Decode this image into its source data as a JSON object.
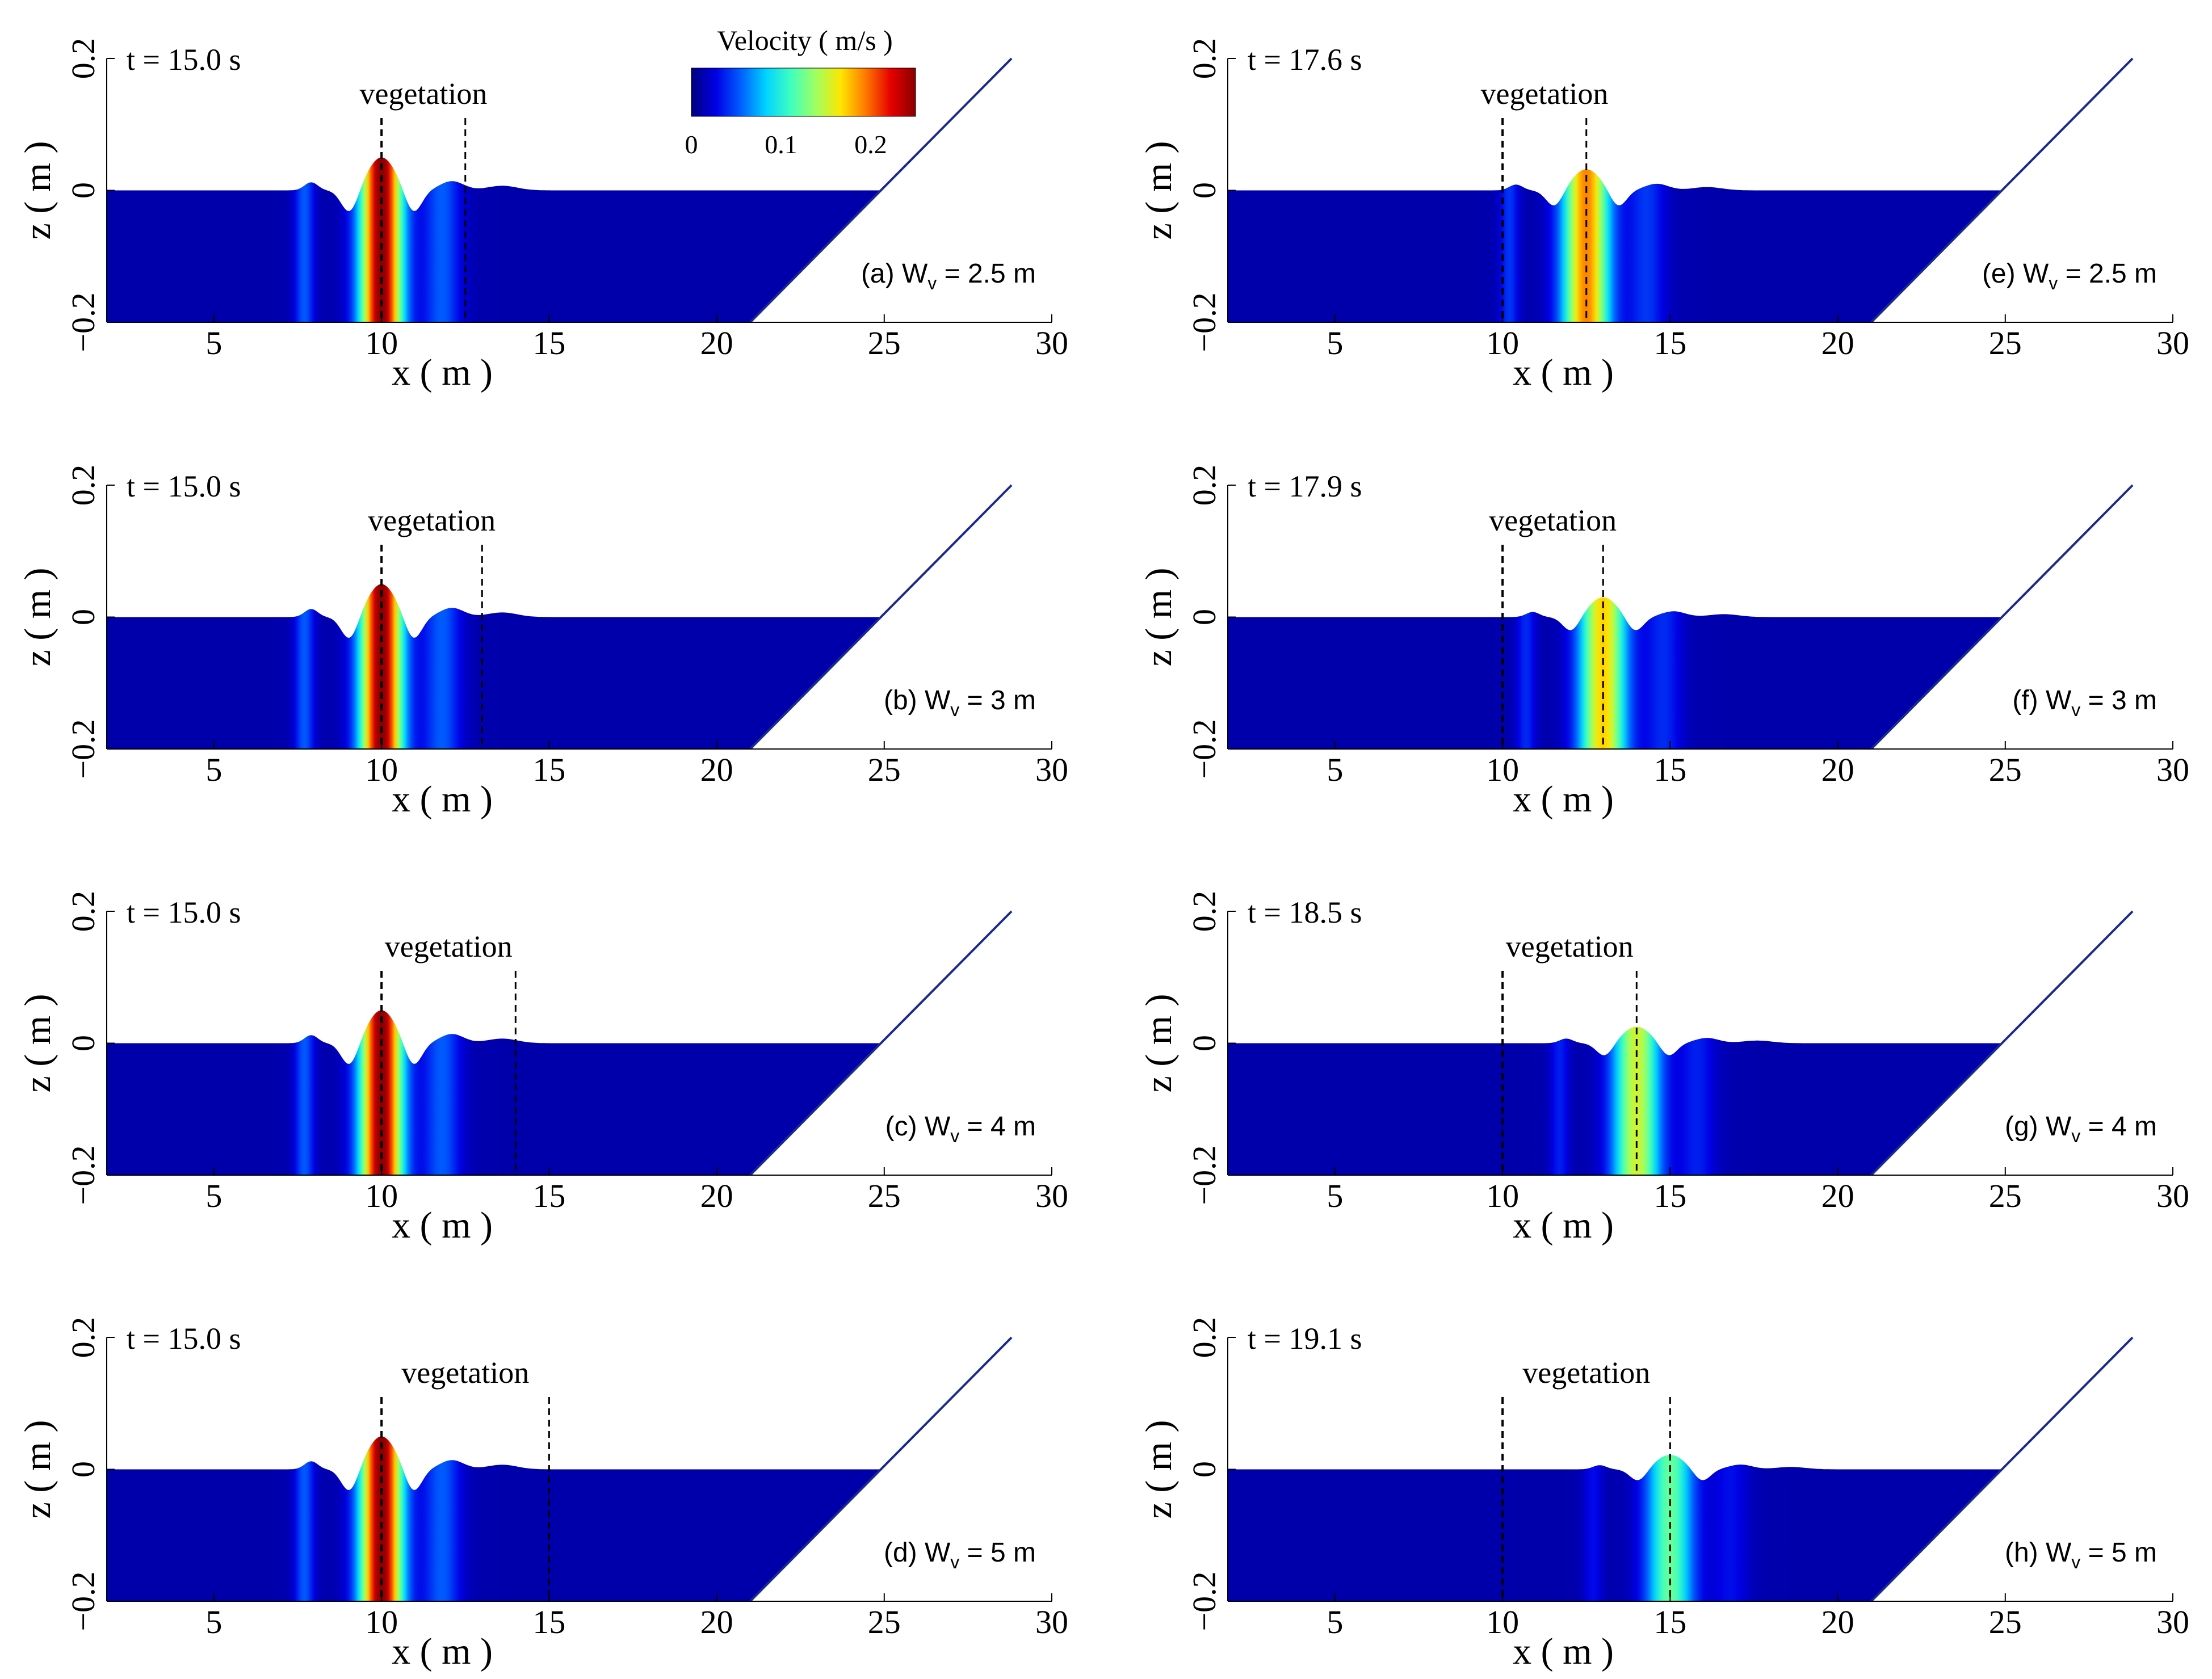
{
  "colorbar": {
    "title": "Velocity ( m/s )",
    "ticks": [
      0,
      0.1,
      0.2
    ],
    "tick_labels": [
      "0",
      "0.1",
      "0.2"
    ],
    "range": [
      0,
      0.25
    ],
    "colors": [
      "#00007f",
      "#0000e6",
      "#0060ff",
      "#00d4ff",
      "#40ffbf",
      "#a0ff60",
      "#ffe600",
      "#ff7800",
      "#e60000",
      "#8a0000"
    ]
  },
  "chart_data": [
    {
      "panel": "a",
      "type": "heatmap",
      "time_label": "t = 15.0 s",
      "label": "(a) W",
      "label_sub": "v",
      "label_tail": " = 2.5 m",
      "veg_label": "vegetation",
      "veg_start": 10,
      "veg_end": 12.5,
      "xlabel": "x ( m )",
      "ylabel": "z ( m )",
      "xlim": [
        1.8,
        30
      ],
      "ylim": [
        -0.2,
        0.2
      ],
      "xticks": [
        5,
        10,
        15,
        20,
        25,
        30
      ],
      "yticks": [
        -0.2,
        0,
        0.2
      ],
      "ytick_labels": [
        "−0.2",
        "0",
        "0.2"
      ],
      "slope_start": 21,
      "slope_end": 28.8,
      "wave": {
        "x": 10,
        "amp": 0.05,
        "vmax": 0.24,
        "width": 0.45,
        "trough": 0.035
      }
    },
    {
      "panel": "b",
      "type": "heatmap",
      "time_label": "t = 15.0 s",
      "label": "(b) W",
      "label_sub": "v",
      "label_tail": " = 3 m",
      "veg_label": "vegetation",
      "veg_start": 10,
      "veg_end": 13,
      "xlabel": "x ( m )",
      "ylabel": "z ( m )",
      "xlim": [
        1.8,
        30
      ],
      "ylim": [
        -0.2,
        0.2
      ],
      "xticks": [
        5,
        10,
        15,
        20,
        25,
        30
      ],
      "yticks": [
        -0.2,
        0,
        0.2
      ],
      "ytick_labels": [
        "−0.2",
        "0",
        "0.2"
      ],
      "slope_start": 21,
      "slope_end": 28.8,
      "wave": {
        "x": 10,
        "amp": 0.05,
        "vmax": 0.24,
        "width": 0.45,
        "trough": 0.035
      }
    },
    {
      "panel": "c",
      "type": "heatmap",
      "time_label": "t = 15.0 s",
      "label": "(c) W",
      "label_sub": "v",
      "label_tail": " = 4 m",
      "veg_label": "vegetation",
      "veg_start": 10,
      "veg_end": 14,
      "xlabel": "x ( m )",
      "ylabel": "z ( m )",
      "xlim": [
        1.8,
        30
      ],
      "ylim": [
        -0.2,
        0.2
      ],
      "xticks": [
        5,
        10,
        15,
        20,
        25,
        30
      ],
      "yticks": [
        -0.2,
        0,
        0.2
      ],
      "ytick_labels": [
        "−0.2",
        "0",
        "0.2"
      ],
      "slope_start": 21,
      "slope_end": 28.8,
      "wave": {
        "x": 10,
        "amp": 0.05,
        "vmax": 0.24,
        "width": 0.45,
        "trough": 0.035
      }
    },
    {
      "panel": "d",
      "type": "heatmap",
      "time_label": "t = 15.0 s",
      "label": "(d) W",
      "label_sub": "v",
      "label_tail": " = 5 m",
      "veg_label": "vegetation",
      "veg_start": 10,
      "veg_end": 15,
      "xlabel": "x ( m )",
      "ylabel": "z ( m )",
      "xlim": [
        1.8,
        30
      ],
      "ylim": [
        -0.2,
        0.2
      ],
      "xticks": [
        5,
        10,
        15,
        20,
        25,
        30
      ],
      "yticks": [
        -0.2,
        0,
        0.2
      ],
      "ytick_labels": [
        "−0.2",
        "0",
        "0.2"
      ],
      "slope_start": 21,
      "slope_end": 28.8,
      "wave": {
        "x": 10,
        "amp": 0.05,
        "vmax": 0.24,
        "width": 0.45,
        "trough": 0.035
      }
    },
    {
      "panel": "e",
      "type": "heatmap",
      "time_label": "t = 17.6 s",
      "label": "(e) W",
      "label_sub": "v",
      "label_tail": " = 2.5 m",
      "veg_label": "vegetation",
      "veg_start": 10,
      "veg_end": 12.5,
      "xlabel": "x ( m )",
      "ylabel": "z ( m )",
      "xlim": [
        1.8,
        30
      ],
      "ylim": [
        -0.2,
        0.2
      ],
      "xticks": [
        5,
        10,
        15,
        20,
        25,
        30
      ],
      "yticks": [
        -0.2,
        0,
        0.2
      ],
      "ytick_labels": [
        "−0.2",
        "0",
        "0.2"
      ],
      "slope_start": 21,
      "slope_end": 28.8,
      "wave": {
        "x": 12.5,
        "amp": 0.032,
        "vmax": 0.18,
        "width": 0.5,
        "trough": 0.025
      }
    },
    {
      "panel": "f",
      "type": "heatmap",
      "time_label": "t = 17.9 s",
      "label": "(f) W",
      "label_sub": "v",
      "label_tail": " = 3 m",
      "veg_label": "vegetation",
      "veg_start": 10,
      "veg_end": 13,
      "xlabel": "x ( m )",
      "ylabel": "z ( m )",
      "xlim": [
        1.8,
        30
      ],
      "ylim": [
        -0.2,
        0.2
      ],
      "xticks": [
        5,
        10,
        15,
        20,
        25,
        30
      ],
      "yticks": [
        -0.2,
        0,
        0.2
      ],
      "ytick_labels": [
        "−0.2",
        "0",
        "0.2"
      ],
      "slope_start": 21,
      "slope_end": 28.8,
      "wave": {
        "x": 13,
        "amp": 0.03,
        "vmax": 0.16,
        "width": 0.5,
        "trough": 0.022
      }
    },
    {
      "panel": "g",
      "type": "heatmap",
      "time_label": "t = 18.5 s",
      "label": "(g) W",
      "label_sub": "v",
      "label_tail": " = 4 m",
      "veg_label": "vegetation",
      "veg_start": 10,
      "veg_end": 14,
      "xlabel": "x ( m )",
      "ylabel": "z ( m )",
      "xlim": [
        1.8,
        30
      ],
      "ylim": [
        -0.2,
        0.2
      ],
      "xticks": [
        5,
        10,
        15,
        20,
        25,
        30
      ],
      "yticks": [
        -0.2,
        0,
        0.2
      ],
      "ytick_labels": [
        "−0.2",
        "0",
        "0.2"
      ],
      "slope_start": 21,
      "slope_end": 28.8,
      "wave": {
        "x": 14,
        "amp": 0.025,
        "vmax": 0.14,
        "width": 0.5,
        "trough": 0.02
      }
    },
    {
      "panel": "h",
      "type": "heatmap",
      "time_label": "t = 19.1 s",
      "label": "(h) W",
      "label_sub": "v",
      "label_tail": " = 5 m",
      "veg_label": "vegetation",
      "veg_start": 10,
      "veg_end": 15,
      "xlabel": "x ( m )",
      "ylabel": "z ( m )",
      "xlim": [
        1.8,
        30
      ],
      "ylim": [
        -0.2,
        0.2
      ],
      "xticks": [
        5,
        10,
        15,
        20,
        25,
        30
      ],
      "yticks": [
        -0.2,
        0,
        0.2
      ],
      "ytick_labels": [
        "−0.2",
        "0",
        "0.2"
      ],
      "slope_start": 21,
      "slope_end": 28.8,
      "wave": {
        "x": 15,
        "amp": 0.022,
        "vmax": 0.11,
        "width": 0.5,
        "trough": 0.018
      }
    }
  ]
}
